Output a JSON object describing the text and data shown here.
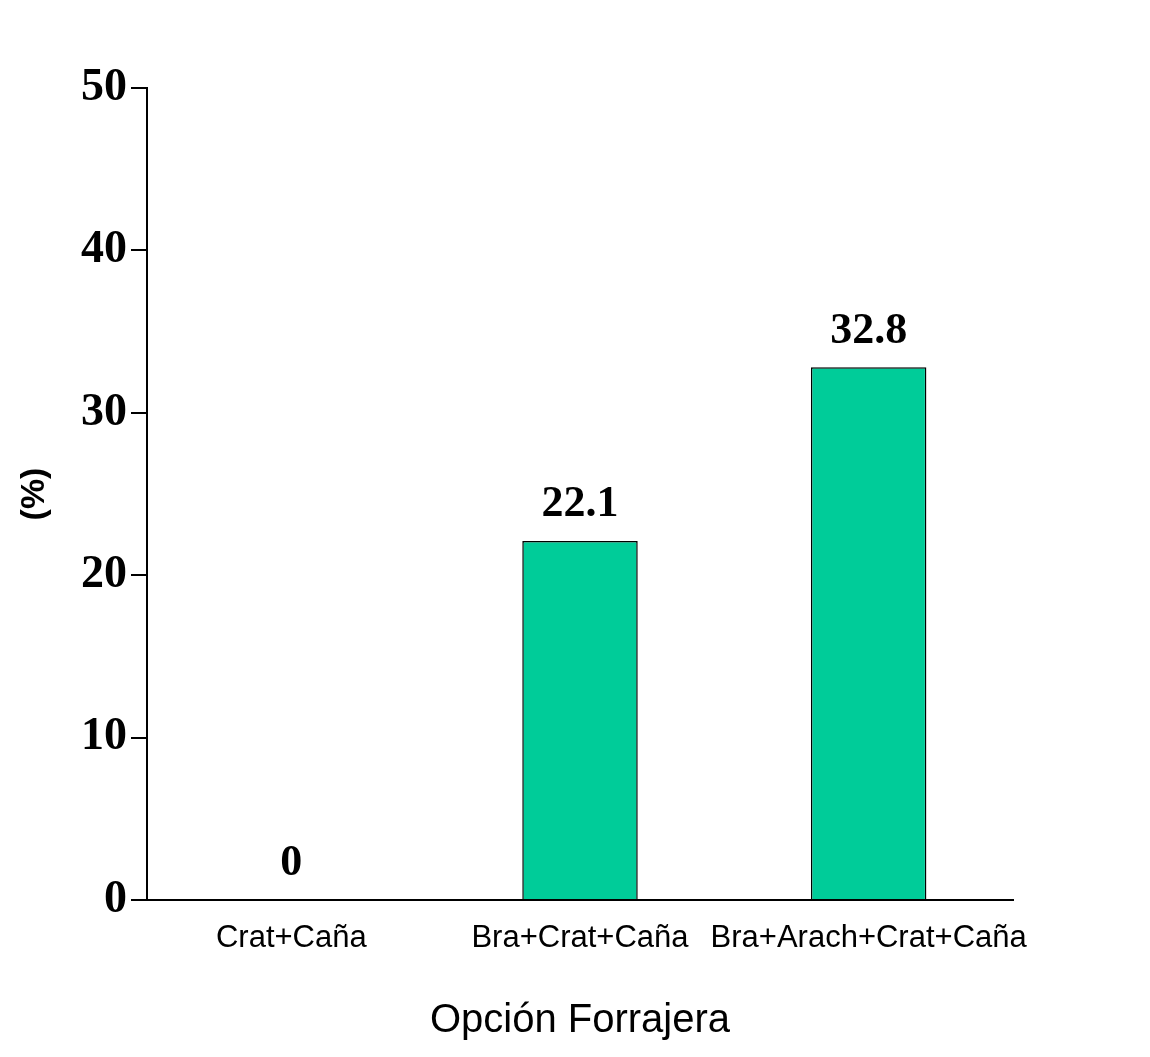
{
  "chart_data": {
    "type": "bar",
    "ylabel": "(%)",
    "xlabel": "Opción Forrajera",
    "categories": [
      "Crat+Caña",
      "Bra+Crat+Caña",
      "Bra+Arach+Crat+Caña"
    ],
    "values": [
      0,
      22.1,
      32.8
    ],
    "color": "#00cc99",
    "ylim": [
      0,
      50
    ],
    "yticks": [
      0,
      10,
      20,
      30,
      40,
      50
    ],
    "data_labels": true
  }
}
